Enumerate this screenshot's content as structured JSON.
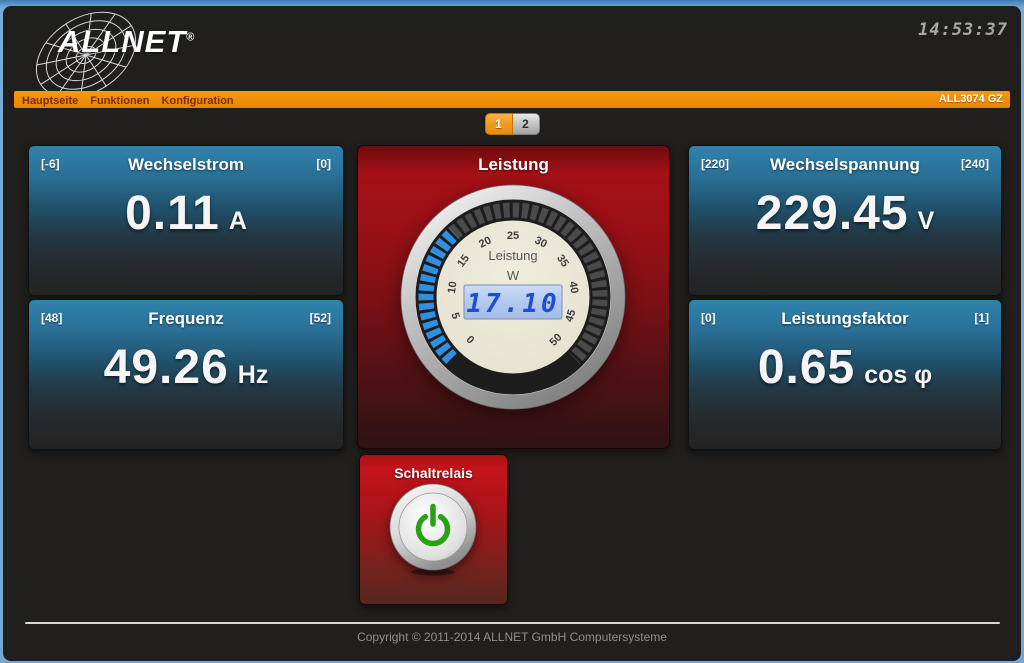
{
  "header": {
    "logo_text": "ALLNET",
    "logo_reg": "®",
    "clock": "14:53:37"
  },
  "nav": {
    "items": [
      {
        "id": "hauptseite",
        "label": "Hauptseite"
      },
      {
        "id": "funktionen",
        "label": "Funktionen"
      },
      {
        "id": "konfiguration",
        "label": "Konfiguration"
      }
    ],
    "device_label": "ALL3074 GZ"
  },
  "tabs": [
    {
      "label": "1",
      "active": true
    },
    {
      "label": "2",
      "active": false
    }
  ],
  "panels": {
    "wechselstrom": {
      "title": "Wechselstrom",
      "min": "[-6]",
      "max": "[0]",
      "value": "0.11",
      "unit": "A"
    },
    "frequenz": {
      "title": "Frequenz",
      "min": "[48]",
      "max": "[52]",
      "value": "49.26",
      "unit": "Hz"
    },
    "wechselspannung": {
      "title": "Wechselspannung",
      "min": "[220]",
      "max": "[240]",
      "value": "229.45",
      "unit": "V"
    },
    "leistungsfaktor": {
      "title": "Leistungsfaktor",
      "min": "[0]",
      "max": "[1]",
      "value": "0.65",
      "unit": "cos φ"
    }
  },
  "gauge": {
    "panel_title": "Leistung",
    "dial_label": "Leistung",
    "dial_unit": "W",
    "value": 17.1,
    "display": "17.10",
    "min": 0,
    "max": 50,
    "ticks": [
      0,
      5,
      10,
      15,
      20,
      25,
      30,
      35,
      40,
      45,
      50
    ]
  },
  "relay": {
    "title": "Schaltrelais",
    "state": "on"
  },
  "footer": {
    "copyright": "Copyright © 2011-2014 ALLNET GmbH Computersysteme"
  },
  "colors": {
    "accent_orange": "#ee8c04",
    "panel_blue_top": "#2f83ac",
    "panel_red": "#9b1016",
    "gauge_blue": "#2f8fe0",
    "lcd_bg": "#b3c9ee",
    "lcd_digits": "#1f4fd0",
    "power_green": "#28a212"
  }
}
